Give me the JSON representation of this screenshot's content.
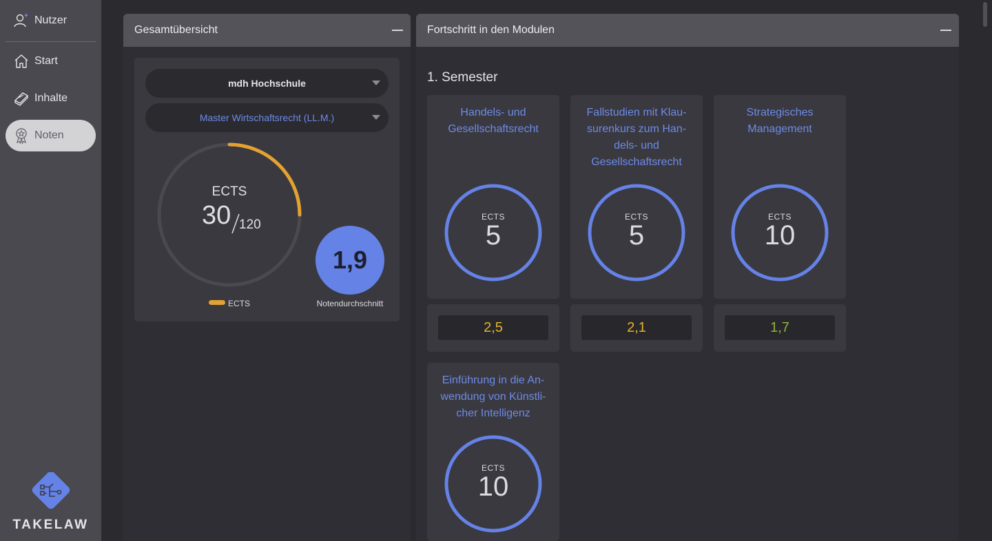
{
  "sidebar": {
    "items": [
      {
        "label": "Nutzer",
        "icon": "user-star-icon"
      },
      {
        "label": "Start",
        "icon": "home-icon"
      },
      {
        "label": "Inhalte",
        "icon": "book-icon"
      },
      {
        "label": "Noten",
        "icon": "award-icon",
        "active": true
      }
    ],
    "brand": "TAKELAW"
  },
  "overview": {
    "title": "Gesamtübersicht",
    "university": "mdh Hochschule",
    "program": "Master Wirtschaftsrecht (LL.M.)",
    "ects_label": "ECTS",
    "ects_value": "30",
    "ects_total": "120",
    "ects_fraction": 0.25,
    "legend_label": "ECTS",
    "average_value": "1,9",
    "average_label": "Notendurchschnitt",
    "accent_orange": "#e3a231",
    "accent_blue": "#6582e6"
  },
  "modules_panel": {
    "title": "Fortschritt in den Modulen",
    "semester": "1. Semester",
    "modules": [
      {
        "title_lines": [
          "Handels- und",
          "Gesellschaftsrecht"
        ],
        "ects_label": "ECTS",
        "ects": "5",
        "grade": "2,5",
        "grade_color": "#e5b52a"
      },
      {
        "title_lines": [
          "Fallstudien mit Klau-",
          "surenkurs zum Han-",
          "dels- und",
          "Gesellschaftsrecht"
        ],
        "ects_label": "ECTS",
        "ects": "5",
        "grade": "2,1",
        "grade_color": "#e5b52a"
      },
      {
        "title_lines": [
          "Strategisches",
          "Management"
        ],
        "ects_label": "ECTS",
        "ects": "10",
        "grade": "1,7",
        "grade_color": "#93b43a"
      },
      {
        "title_lines": [
          "Einführung in die An-",
          "wendung von Künstli-",
          "cher Intelligenz"
        ],
        "ects_label": "ECTS",
        "ects": "10"
      }
    ]
  }
}
